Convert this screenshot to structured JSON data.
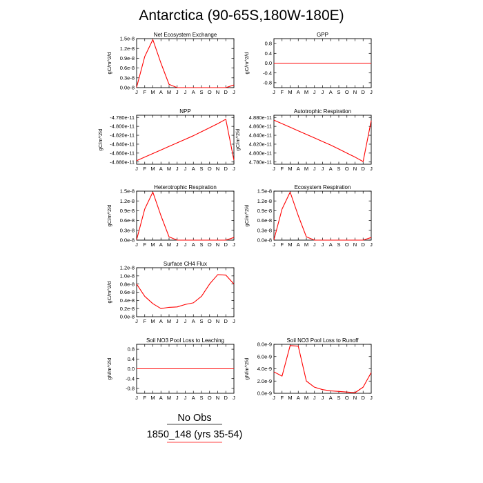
{
  "title": "Antarctica (90-65S,180W-180E)",
  "legend": [
    {
      "label": "No Obs",
      "color": "#000000"
    },
    {
      "label": "1850_148 (yrs 35-54)",
      "color": "#ff0000"
    }
  ],
  "chart_data": [
    {
      "type": "line",
      "title": "Net Ecosystem Exchange",
      "ylabel": "gC/m^2/d",
      "x": [
        "J",
        "F",
        "M",
        "A",
        "M",
        "J",
        "J",
        "A",
        "S",
        "O",
        "N",
        "D",
        "J"
      ],
      "ylim": [
        0,
        1.5e-08
      ],
      "yticks": [
        0,
        3e-09,
        6e-09,
        9e-09,
        1.2e-08,
        1.5e-08
      ],
      "ytick_labels": [
        "0.0e-8",
        "0.3e-8",
        "0.6e-8",
        "0.9e-8",
        "1.2e-8",
        "1.5e-8"
      ],
      "series": [
        {
          "color": "#ff0000",
          "values": [
            1e-10,
            9.5e-09,
            1.47e-08,
            7.5e-09,
            1e-09,
            0,
            0,
            0,
            0,
            0,
            0,
            0,
            8e-10
          ]
        }
      ]
    },
    {
      "type": "line",
      "title": "GPP",
      "ylabel": "gC/m^2/d",
      "x": [
        "J",
        "F",
        "M",
        "A",
        "M",
        "J",
        "J",
        "A",
        "S",
        "O",
        "N",
        "D",
        "J"
      ],
      "ylim": [
        -1,
        1
      ],
      "yticks": [
        -0.8,
        -0.4,
        0,
        0.4,
        0.8
      ],
      "ytick_labels": [
        "-0.8",
        "-0.4",
        "0.0",
        "0.4",
        "0.8"
      ],
      "series": [
        {
          "color": "#ff0000",
          "values": [
            0,
            0,
            0,
            0,
            0,
            0,
            0,
            0,
            0,
            0,
            0,
            0,
            0
          ]
        }
      ]
    },
    {
      "type": "line",
      "title": "NPP",
      "ylabel": "gC/m^2/d",
      "x": [
        "J",
        "F",
        "M",
        "A",
        "M",
        "J",
        "J",
        "A",
        "S",
        "O",
        "N",
        "D",
        "J"
      ],
      "ylim": [
        -4.885e-11,
        -4.775e-11
      ],
      "yticks": [
        -4.88e-11,
        -4.86e-11,
        -4.84e-11,
        -4.82e-11,
        -4.8e-11,
        -4.78e-11
      ],
      "ytick_labels": [
        "-4.880e-11",
        "-4.860e-11",
        "-4.840e-11",
        "-4.820e-11",
        "-4.800e-11",
        "-4.780e-11"
      ],
      "series": [
        {
          "color": "#ff0000",
          "values": [
            -4.877e-11,
            -4.869e-11,
            -4.861e-11,
            -4.853e-11,
            -4.845e-11,
            -4.837e-11,
            -4.829e-11,
            -4.821e-11,
            -4.812e-11,
            -4.803e-11,
            -4.794e-11,
            -4.784e-11,
            -4.876e-11
          ]
        }
      ]
    },
    {
      "type": "line",
      "title": "Autotrophic Respiration",
      "ylabel": "gC/m^2/d",
      "x": [
        "J",
        "F",
        "M",
        "A",
        "M",
        "J",
        "J",
        "A",
        "S",
        "O",
        "N",
        "D",
        "J"
      ],
      "ylim": [
        4.775e-11,
        4.885e-11
      ],
      "yticks": [
        4.78e-11,
        4.8e-11,
        4.82e-11,
        4.84e-11,
        4.86e-11,
        4.88e-11
      ],
      "ytick_labels": [
        "4.780e-11",
        "4.800e-11",
        "4.820e-11",
        "4.840e-11",
        "4.860e-11",
        "4.880e-11"
      ],
      "series": [
        {
          "color": "#ff0000",
          "values": [
            4.874e-11,
            4.866e-11,
            4.858e-11,
            4.85e-11,
            4.842e-11,
            4.834e-11,
            4.826e-11,
            4.818e-11,
            4.809e-11,
            4.8e-11,
            4.791e-11,
            4.781e-11,
            4.873e-11
          ]
        }
      ]
    },
    {
      "type": "line",
      "title": "Heterotrophic Respiration",
      "ylabel": "gC/m^2/d",
      "x": [
        "J",
        "F",
        "M",
        "A",
        "M",
        "J",
        "J",
        "A",
        "S",
        "O",
        "N",
        "D",
        "J"
      ],
      "ylim": [
        0,
        1.5e-08
      ],
      "yticks": [
        0,
        3e-09,
        6e-09,
        9e-09,
        1.2e-08,
        1.5e-08
      ],
      "ytick_labels": [
        "0.0e-8",
        "0.3e-8",
        "0.6e-8",
        "0.9e-8",
        "1.2e-8",
        "1.5e-8"
      ],
      "series": [
        {
          "color": "#ff0000",
          "values": [
            1e-10,
            9.5e-09,
            1.47e-08,
            7.5e-09,
            1e-09,
            0,
            0,
            0,
            0,
            0,
            0,
            0,
            8e-10
          ]
        }
      ]
    },
    {
      "type": "line",
      "title": "Ecosystem Respiration",
      "ylabel": "gC/m^2/d",
      "x": [
        "J",
        "F",
        "M",
        "A",
        "M",
        "J",
        "J",
        "A",
        "S",
        "O",
        "N",
        "D",
        "J"
      ],
      "ylim": [
        0,
        1.5e-08
      ],
      "yticks": [
        0,
        3e-09,
        6e-09,
        9e-09,
        1.2e-08,
        1.5e-08
      ],
      "ytick_labels": [
        "0.0e-8",
        "0.3e-8",
        "0.6e-8",
        "0.9e-8",
        "1.2e-8",
        "1.5e-8"
      ],
      "series": [
        {
          "color": "#ff0000",
          "values": [
            1e-10,
            9.5e-09,
            1.47e-08,
            7.5e-09,
            1e-09,
            0,
            0,
            0,
            0,
            0,
            0,
            0,
            8e-10
          ]
        }
      ]
    },
    {
      "type": "line",
      "title": "Surface CH4 Flux",
      "ylabel": "gC/m^2/d",
      "x": [
        "J",
        "F",
        "M",
        "A",
        "M",
        "J",
        "J",
        "A",
        "S",
        "O",
        "N",
        "D",
        "J"
      ],
      "ylim": [
        0,
        1.2e-08
      ],
      "yticks": [
        0,
        2e-09,
        4e-09,
        6e-09,
        8e-09,
        1e-08,
        1.2e-08
      ],
      "ytick_labels": [
        "0.0e-8",
        "0.2e-8",
        "0.4e-8",
        "0.6e-8",
        "0.8e-8",
        "1.0e-8",
        "1.2e-8"
      ],
      "series": [
        {
          "color": "#ff0000",
          "values": [
            8e-09,
            5e-09,
            3.2e-09,
            2e-09,
            2.3e-09,
            2.4e-09,
            3e-09,
            3.4e-09,
            5e-09,
            8e-09,
            1.03e-08,
            1.02e-08,
            8e-09
          ]
        }
      ]
    },
    {
      "type": "line",
      "title": "Soil NO3 Pool Loss to Leaching",
      "ylabel": "gN/m^2/d",
      "x": [
        "J",
        "F",
        "M",
        "A",
        "M",
        "J",
        "J",
        "A",
        "S",
        "O",
        "N",
        "D",
        "J"
      ],
      "ylim": [
        -1,
        1
      ],
      "yticks": [
        -0.8,
        -0.4,
        0,
        0.4,
        0.8
      ],
      "ytick_labels": [
        "-0.8",
        "-0.4",
        "0.0",
        "0.4",
        "0.8"
      ],
      "series": [
        {
          "color": "#ff0000",
          "values": [
            0,
            0,
            0,
            0,
            0,
            0,
            0,
            0,
            0,
            0,
            0,
            0,
            0
          ]
        }
      ]
    },
    {
      "type": "line",
      "title": "Soil NO3 Pool Loss to Runoff",
      "ylabel": "gN/m^2/d",
      "x": [
        "J",
        "F",
        "M",
        "A",
        "M",
        "J",
        "J",
        "A",
        "S",
        "O",
        "N",
        "D",
        "J"
      ],
      "ylim": [
        0,
        8e-09
      ],
      "yticks": [
        0,
        2e-09,
        4e-09,
        6e-09,
        8e-09
      ],
      "ytick_labels": [
        "0.0e-9",
        "2.0e-9",
        "4.0e-9",
        "6.0e-9",
        "8.0e-9"
      ],
      "series": [
        {
          "color": "#ff0000",
          "values": [
            3.5e-09,
            2.8e-09,
            7.8e-09,
            7.7e-09,
            2e-09,
            1e-09,
            6e-10,
            4e-10,
            3e-10,
            2e-10,
            1e-10,
            1e-09,
            3.4e-09
          ]
        }
      ]
    }
  ]
}
